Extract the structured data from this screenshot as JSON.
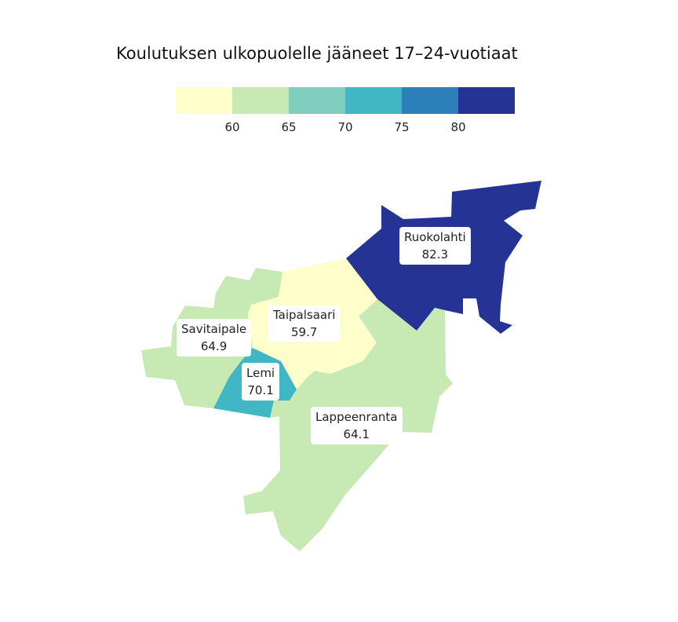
{
  "title": "Koulutuksen ulkopuolelle jääneet 17–24-vuotiaat",
  "legend": {
    "colors": [
      "#ffffcc",
      "#c7e9b4",
      "#7fcdbb",
      "#41b6c4",
      "#2c7fb8",
      "#253494"
    ],
    "ticks": [
      "60",
      "65",
      "70",
      "75",
      "80"
    ]
  },
  "regions": [
    {
      "name": "Ruokolahti",
      "value": "82.3",
      "color": "#253494"
    },
    {
      "name": "Taipalsaari",
      "value": "59.7",
      "color": "#ffffcc"
    },
    {
      "name": "Savitaipale",
      "value": "64.9",
      "color": "#c7e9b4"
    },
    {
      "name": "Lemi",
      "value": "70.1",
      "color": "#41b6c4"
    },
    {
      "name": "Lappeenranta",
      "value": "64.1",
      "color": "#c7e9b4"
    }
  ]
}
